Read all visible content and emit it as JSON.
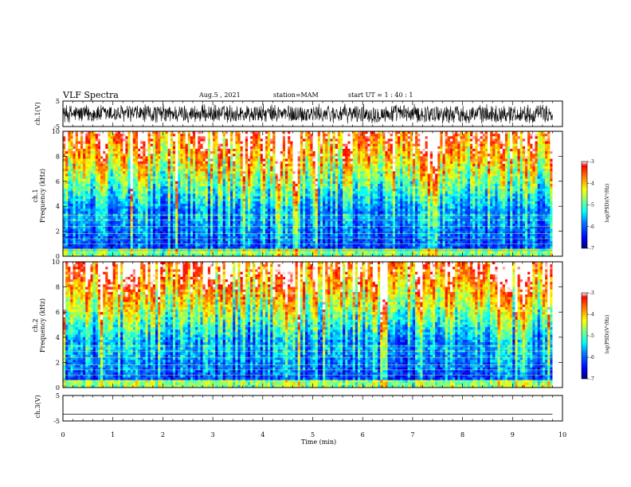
{
  "header": {
    "title": "VLF Spectra",
    "date": "Aug.5 , 2021",
    "station": "station=MAM",
    "start": "start UT = 1 : 40 : 1"
  },
  "chart_data": [
    {
      "type": "line",
      "name": "ch1-waveform",
      "ylabel": "ch.1(V)",
      "ylim": [
        -5,
        5
      ],
      "yticks": [
        {
          "v": 5,
          "label": "5"
        },
        {
          "v": -5,
          "label": "-5"
        }
      ],
      "xlim": [
        0,
        10
      ],
      "description_level": [
        -2.5,
        2.5
      ]
    },
    {
      "type": "heatmap",
      "name": "ch1-spectrogram",
      "ylabel": "ch.1 Frequency (kHz)",
      "ylabel_lines": [
        "ch.1",
        "Frequency (kHz)"
      ],
      "ylim": [
        0,
        10
      ],
      "yticks": [
        {
          "v": 0,
          "label": "0"
        },
        {
          "v": 2,
          "label": "2"
        },
        {
          "v": 4,
          "label": "4"
        },
        {
          "v": 6,
          "label": "6"
        },
        {
          "v": 8,
          "label": "8"
        },
        {
          "v": 10,
          "label": "10"
        }
      ],
      "xlim": [
        0,
        9.8
      ],
      "colorbar": {
        "label": "log(PSD)(V²/Hz)",
        "range": [
          -7,
          -3
        ],
        "ticks": [
          {
            "v": -3,
            "label": "-3"
          },
          {
            "v": -4,
            "label": "-4"
          },
          {
            "v": -5,
            "label": "-5"
          },
          {
            "v": -6,
            "label": "-6"
          },
          {
            "v": -7,
            "label": "-7"
          }
        ]
      }
    },
    {
      "type": "heatmap",
      "name": "ch2-spectrogram",
      "ylabel": "ch.2 Frequency (kHz)",
      "ylabel_lines": [
        "ch.2",
        "Frequency (kHz)"
      ],
      "ylim": [
        0,
        10
      ],
      "yticks": [
        {
          "v": 0,
          "label": "0"
        },
        {
          "v": 2,
          "label": "2"
        },
        {
          "v": 4,
          "label": "4"
        },
        {
          "v": 6,
          "label": "6"
        },
        {
          "v": 8,
          "label": "8"
        },
        {
          "v": 10,
          "label": "10"
        }
      ],
      "xlim": [
        0,
        9.8
      ],
      "colorbar": {
        "label": "log(PSD)(V²/Hz)",
        "range": [
          -7,
          -3
        ],
        "ticks": [
          {
            "v": -3,
            "label": "-3"
          },
          {
            "v": -4,
            "label": "-4"
          },
          {
            "v": -5,
            "label": "-5"
          },
          {
            "v": -6,
            "label": "-6"
          },
          {
            "v": -7,
            "label": "-7"
          }
        ]
      }
    },
    {
      "type": "line",
      "name": "ch3-waveform",
      "ylabel": "ch.3(V)",
      "ylim": [
        -5,
        5
      ],
      "yticks": [
        {
          "v": 5,
          "label": "5"
        },
        {
          "v": -5,
          "label": "-5"
        }
      ],
      "xlim": [
        0,
        10
      ],
      "x": [
        0,
        9.8
      ],
      "y": [
        -2.3,
        -2.3
      ]
    }
  ],
  "xaxis": {
    "label": "Time (min)",
    "xlim": [
      0,
      10
    ],
    "ticks": [
      {
        "v": 0,
        "label": "0"
      },
      {
        "v": 1,
        "label": "1"
      },
      {
        "v": 2,
        "label": "2"
      },
      {
        "v": 3,
        "label": "3"
      },
      {
        "v": 4,
        "label": "4"
      },
      {
        "v": 5,
        "label": "5"
      },
      {
        "v": 6,
        "label": "6"
      },
      {
        "v": 7,
        "label": "7"
      },
      {
        "v": 8,
        "label": "8"
      },
      {
        "v": 9,
        "label": "9"
      },
      {
        "v": 10,
        "label": "10"
      }
    ]
  },
  "colors": {
    "jet": [
      "#00007f",
      "#0000ff",
      "#007fff",
      "#00ffff",
      "#7fff7f",
      "#ffff00",
      "#ff7f00",
      "#ff0000",
      "#7f0000"
    ]
  }
}
